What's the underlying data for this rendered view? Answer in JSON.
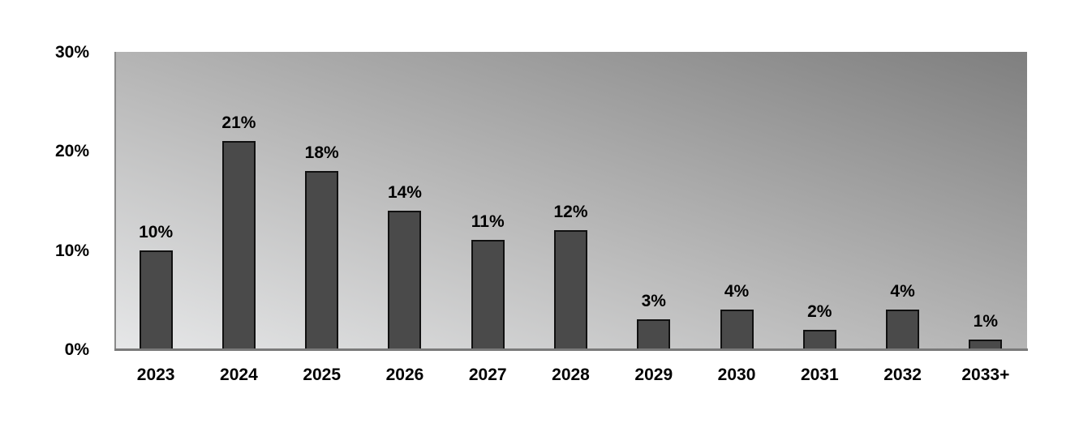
{
  "chart_data": {
    "type": "bar",
    "title": "",
    "xlabel": "",
    "ylabel": "",
    "categories": [
      "2023",
      "2024",
      "2025",
      "2026",
      "2027",
      "2028",
      "2029",
      "2030",
      "2031",
      "2032",
      "2033+"
    ],
    "values": [
      10,
      21,
      18,
      14,
      11,
      12,
      3,
      4,
      2,
      4,
      1
    ],
    "value_labels": [
      "10%",
      "21%",
      "18%",
      "14%",
      "11%",
      "12%",
      "3%",
      "4%",
      "2%",
      "4%",
      "1%"
    ],
    "ylim": [
      0,
      30
    ],
    "yticks": [
      0,
      10,
      20,
      30
    ],
    "ytick_labels": [
      "0%",
      "10%",
      "20%",
      "30%"
    ],
    "grid": false,
    "legend": null,
    "colors": {
      "bar_fill": "#4a4a4a",
      "bar_edge": "#111111",
      "plot_background_gradient": [
        "#e6e7e8",
        "#7f7f7f"
      ],
      "axis": "#7a7a7a"
    }
  }
}
